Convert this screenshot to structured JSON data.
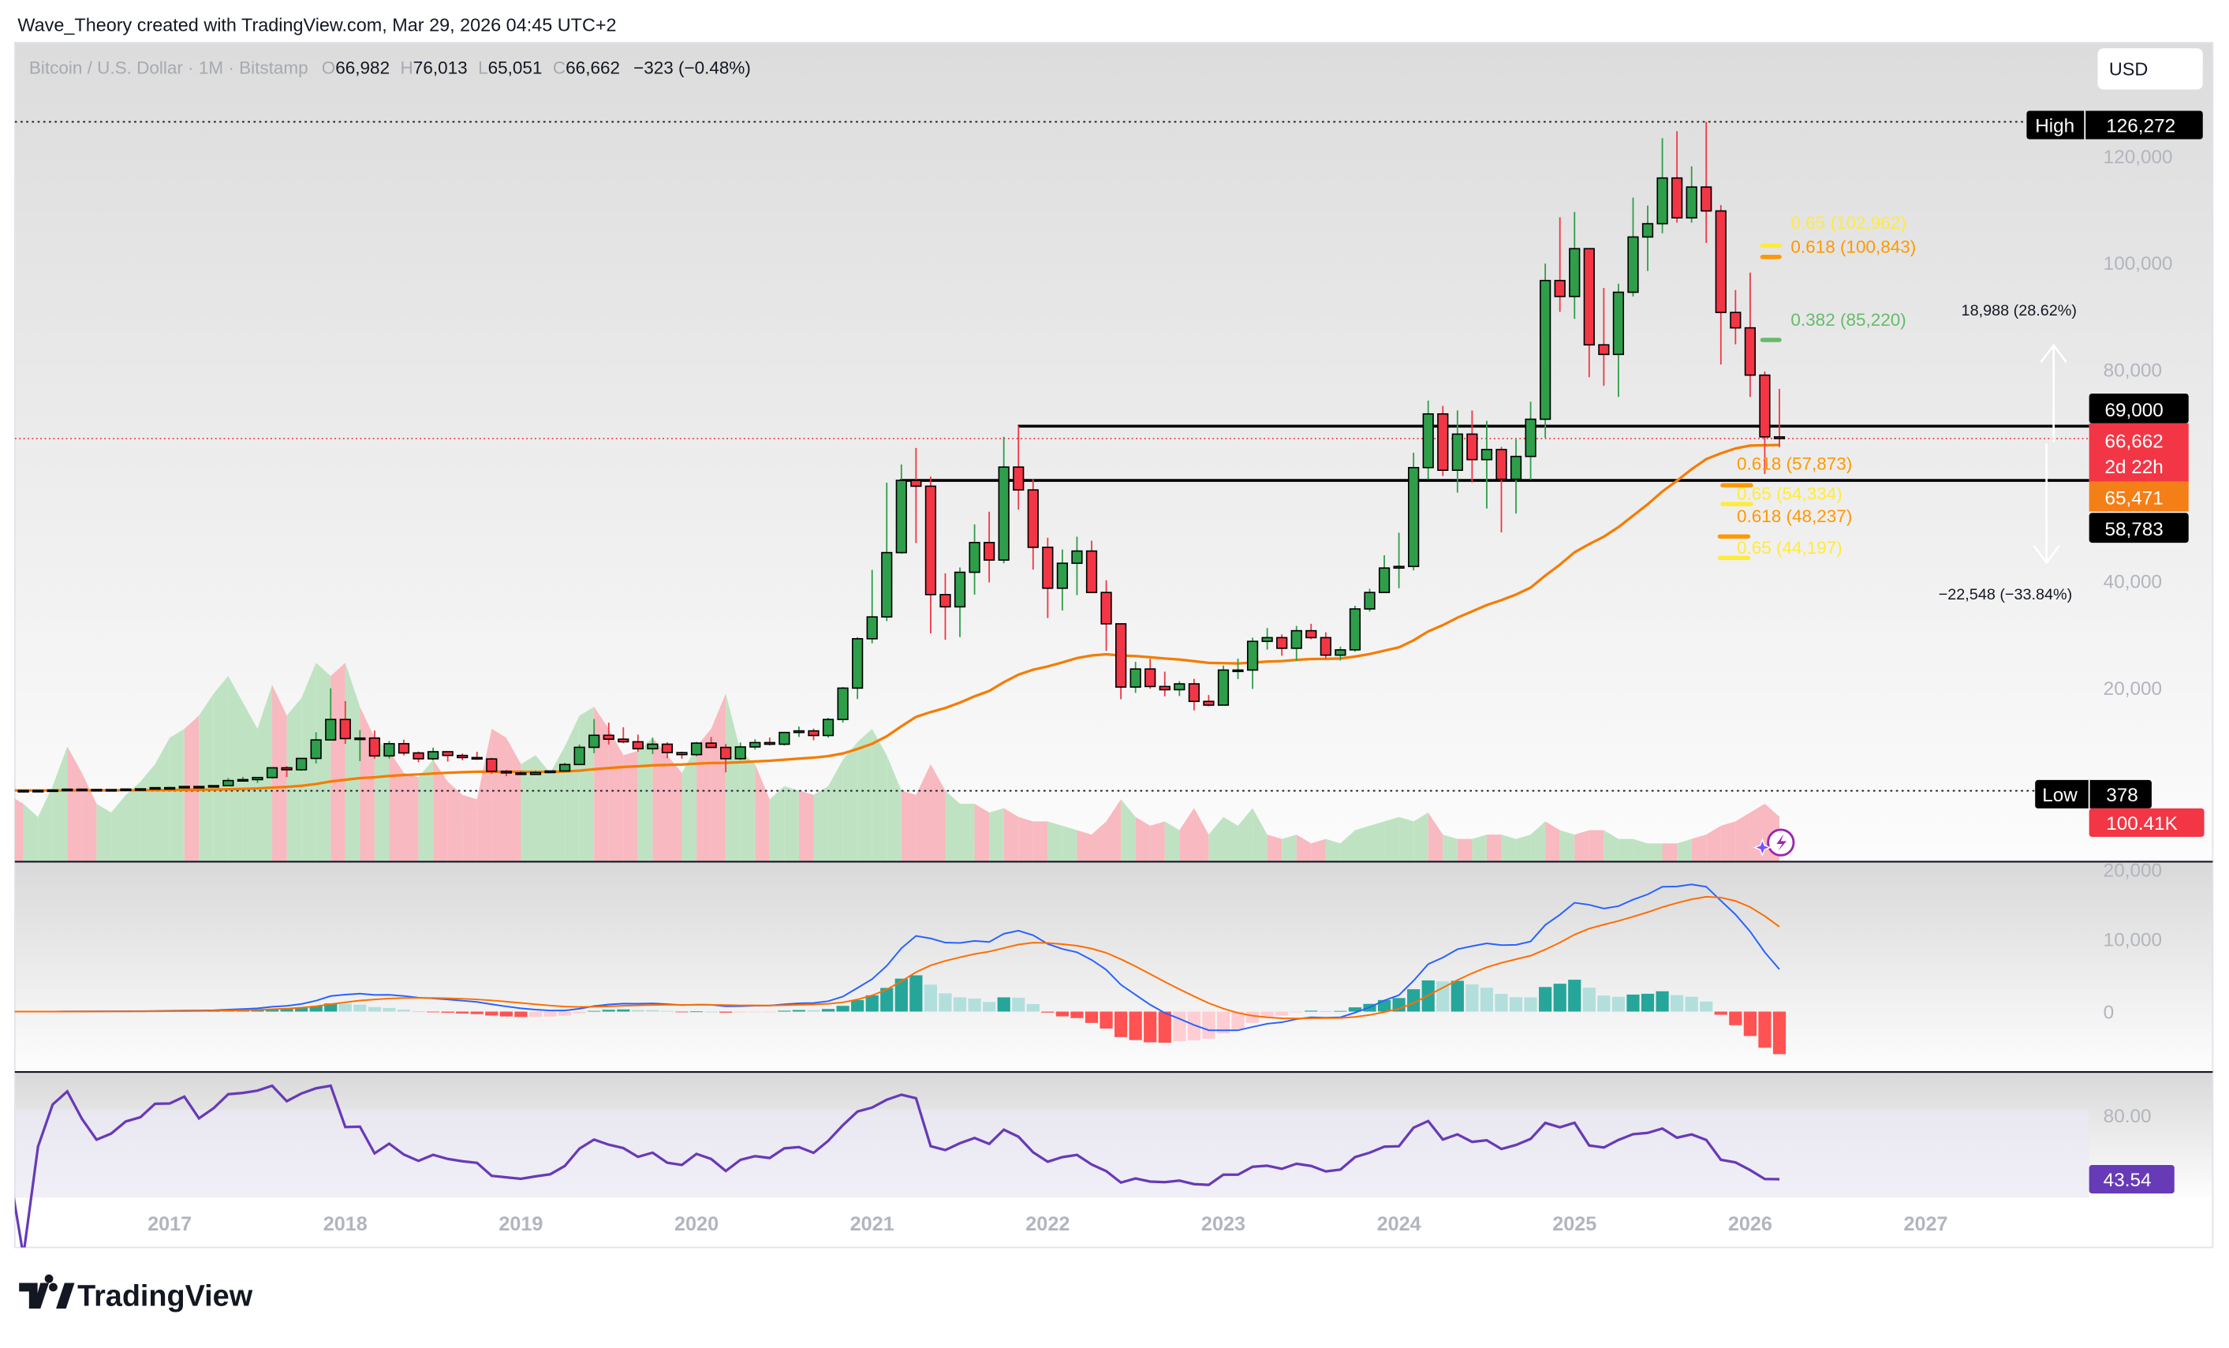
{
  "header": {
    "attribution": "Wave_Theory created with TradingView.com, Mar 29, 2026 04:45 UTC+2"
  },
  "legend": {
    "symbol": "Bitcoin / U.S. Dollar · 1M · Bitstamp",
    "o_label": "O",
    "o": "66,982",
    "h_label": "H",
    "h": "76,013",
    "l_label": "L",
    "l": "65,051",
    "c_label": "C",
    "c": "66,662",
    "change": "−323 (−0.48%)"
  },
  "currency_button": "USD",
  "price_axis": [
    "120,000",
    "100,000",
    "80,000",
    "40,000",
    "20,000"
  ],
  "macd_axis": [
    "20,000",
    "10,000",
    "0"
  ],
  "rsi_axis": [
    "80.00"
  ],
  "time_axis": [
    "2017",
    "2018",
    "2019",
    "2020",
    "2021",
    "2022",
    "2023",
    "2024",
    "2025",
    "2026",
    "2027"
  ],
  "labels": {
    "high_label": "High",
    "high_value": "126,272",
    "low_label": "Low",
    "low_value": "378",
    "level_upper": "69,000",
    "last_price": "66,662",
    "countdown": "2d 22h",
    "ma_value": "65,471",
    "level_lower": "58,783",
    "volume_value": "100.41K",
    "rsi_value": "43.54"
  },
  "levels": {
    "upper": 69000,
    "lower": 58783,
    "last": 66662,
    "high": 126272,
    "low": 378
  },
  "fib": [
    {
      "text": "0.65 (102,962)",
      "price": 102962,
      "color": "#ffeb3b"
    },
    {
      "text": "0.618 (100,843)",
      "price": 100843,
      "color": "#ff9800"
    },
    {
      "text": "0.382 (85,220)",
      "price": 85220,
      "color": "#66bb6a"
    },
    {
      "text": "0.618 (57,873)",
      "price": 57873,
      "color": "#ff9800"
    },
    {
      "text": "0.65 (54,334)",
      "price": 54334,
      "color": "#ffeb3b"
    },
    {
      "text": "0.618 (48,237)",
      "price": 48237,
      "color": "#ff9800"
    },
    {
      "text": "0.65 (44,197)",
      "price": 44197,
      "color": "#ffeb3b"
    }
  ],
  "measure": {
    "up": "18,988 (28.62%)",
    "down": "−22,548 (−33.84%)"
  },
  "logo": "TradingView",
  "colors": {
    "up": "#2e9e4b",
    "down": "#f23645",
    "ma": "#f57c00",
    "macd": "#2962ff",
    "signal": "#ff6d00",
    "rsi": "#673ab7"
  },
  "chart_data": {
    "type": "candlestick",
    "interval": "1M",
    "start": "2016-02",
    "ohlc": [
      [
        369,
        446,
        365,
        437
      ],
      [
        437,
        439,
        403,
        416
      ],
      [
        416,
        468,
        414,
        448
      ],
      [
        448,
        550,
        436,
        531
      ],
      [
        531,
        780,
        520,
        673
      ],
      [
        673,
        705,
        470,
        624
      ],
      [
        624,
        626,
        535,
        575
      ],
      [
        575,
        630,
        565,
        609
      ],
      [
        609,
        720,
        603,
        700
      ],
      [
        700,
        755,
        683,
        742
      ],
      [
        742,
        980,
        735,
        963
      ],
      [
        963,
        1150,
        750,
        970
      ],
      [
        970,
        1210,
        915,
        1190
      ],
      [
        1190,
        1290,
        890,
        1080
      ],
      [
        1080,
        1360,
        1070,
        1350
      ],
      [
        1350,
        2790,
        1340,
        2300
      ],
      [
        2300,
        3000,
        2100,
        2480
      ],
      [
        2480,
        2920,
        1840,
        2875
      ],
      [
        2875,
        4760,
        2670,
        4700
      ],
      [
        4700,
        5000,
        2970,
        4340
      ],
      [
        4340,
        6470,
        4130,
        6470
      ],
      [
        6470,
        11400,
        5510,
        9950
      ],
      [
        9950,
        19670,
        9930,
        13800
      ],
      [
        13800,
        17250,
        9200,
        10200
      ],
      [
        10200,
        11790,
        5960,
        10300
      ],
      [
        10300,
        11710,
        6430,
        6940
      ],
      [
        6940,
        9760,
        6430,
        9240
      ],
      [
        9240,
        9990,
        7040,
        7500
      ],
      [
        7500,
        7770,
        5750,
        6400
      ],
      [
        6400,
        8490,
        6110,
        7730
      ],
      [
        7730,
        7760,
        5880,
        7030
      ],
      [
        7030,
        7400,
        6130,
        6630
      ],
      [
        6630,
        7700,
        6200,
        6370
      ],
      [
        6370,
        6580,
        3560,
        4040
      ],
      [
        4040,
        4310,
        3120,
        3740
      ],
      [
        3740,
        4110,
        3350,
        3460
      ],
      [
        3460,
        4200,
        3370,
        3810
      ],
      [
        3810,
        4140,
        3670,
        4100
      ],
      [
        4100,
        5640,
        4070,
        5320
      ],
      [
        5320,
        9090,
        5320,
        8560
      ],
      [
        8560,
        13880,
        7450,
        10820
      ],
      [
        10820,
        13200,
        9080,
        10090
      ],
      [
        10090,
        12330,
        9330,
        9600
      ],
      [
        9600,
        10950,
        7710,
        8290
      ],
      [
        8290,
        10370,
        7300,
        9150
      ],
      [
        9150,
        9510,
        6520,
        7560
      ],
      [
        7560,
        7750,
        6410,
        7190
      ],
      [
        7190,
        9580,
        6850,
        9350
      ],
      [
        9350,
        10500,
        8450,
        8540
      ],
      [
        8540,
        9190,
        3850,
        6420
      ],
      [
        6420,
        9460,
        6150,
        8630
      ],
      [
        8630,
        10080,
        8120,
        9450
      ],
      [
        9450,
        10400,
        8910,
        9140
      ],
      [
        9140,
        11450,
        8900,
        11350
      ],
      [
        11350,
        12470,
        10520,
        11650
      ],
      [
        11650,
        12070,
        9880,
        10780
      ],
      [
        10780,
        14100,
        10380,
        13800
      ],
      [
        13800,
        19900,
        13200,
        19700
      ],
      [
        19700,
        29300,
        17650,
        28990
      ],
      [
        28990,
        41950,
        28130,
        33100
      ],
      [
        33100,
        58350,
        32300,
        45200
      ],
      [
        45200,
        61780,
        45000,
        58800
      ],
      [
        58800,
        64900,
        47000,
        57700
      ],
      [
        57700,
        59500,
        30000,
        37300
      ],
      [
        37300,
        41300,
        28800,
        35000
      ],
      [
        35000,
        42400,
        29300,
        41500
      ],
      [
        41500,
        50500,
        37300,
        47100
      ],
      [
        47100,
        52900,
        39600,
        43800
      ],
      [
        43800,
        67000,
        43200,
        61300
      ],
      [
        61300,
        69000,
        53300,
        57000
      ],
      [
        57000,
        59100,
        42000,
        46200
      ],
      [
        46200,
        47990,
        32900,
        38500
      ],
      [
        38500,
        45800,
        34300,
        43200
      ],
      [
        43200,
        48200,
        37200,
        45500
      ],
      [
        45500,
        47450,
        37700,
        37700
      ],
      [
        37700,
        40000,
        26700,
        31800
      ],
      [
        31800,
        31900,
        17600,
        19900
      ],
      [
        19900,
        24650,
        18800,
        23300
      ],
      [
        23300,
        25200,
        19600,
        20000
      ],
      [
        20000,
        22800,
        18150,
        19400
      ],
      [
        19400,
        21000,
        18200,
        20500
      ],
      [
        20500,
        21450,
        15500,
        17200
      ],
      [
        17200,
        18400,
        16300,
        16500
      ],
      [
        16500,
        23950,
        16500,
        23100
      ],
      [
        23100,
        25250,
        21400,
        23100
      ],
      [
        23100,
        29200,
        19550,
        28500
      ],
      [
        28500,
        31000,
        26950,
        29200
      ],
      [
        29200,
        29800,
        25800,
        27200
      ],
      [
        27200,
        31400,
        24800,
        30500
      ],
      [
        30500,
        31800,
        28900,
        29200
      ],
      [
        29200,
        30200,
        25200,
        25900
      ],
      [
        25900,
        27500,
        24900,
        26900
      ],
      [
        26900,
        35200,
        26550,
        34600
      ],
      [
        34600,
        38400,
        34100,
        37700
      ],
      [
        37700,
        44700,
        37600,
        42300
      ],
      [
        42300,
        48950,
        38500,
        42600
      ],
      [
        42600,
        64000,
        41850,
        61200
      ],
      [
        61200,
        73800,
        59000,
        71300
      ],
      [
        71300,
        72800,
        59600,
        60700
      ],
      [
        60700,
        71950,
        56500,
        67500
      ],
      [
        67500,
        71950,
        58400,
        62700
      ],
      [
        62700,
        70000,
        53500,
        64600
      ],
      [
        64600,
        65100,
        49000,
        59000
      ],
      [
        59000,
        66500,
        52550,
        63300
      ],
      [
        63300,
        73600,
        58900,
        70300
      ],
      [
        70300,
        99600,
        66800,
        96400
      ],
      [
        96400,
        108300,
        90500,
        93400
      ],
      [
        93400,
        109300,
        89200,
        102400
      ],
      [
        102400,
        102500,
        78200,
        84300
      ],
      [
        84300,
        95000,
        76600,
        82500
      ],
      [
        82500,
        95800,
        74500,
        94200
      ],
      [
        94200,
        112000,
        93400,
        104600
      ],
      [
        104600,
        110500,
        98200,
        107100
      ],
      [
        107100,
        123200,
        105300,
        115700
      ],
      [
        115700,
        124500,
        107300,
        108200
      ],
      [
        108200,
        117900,
        107300,
        114000
      ],
      [
        114000,
        126272,
        103500,
        109500
      ],
      [
        109500,
        110600,
        80600,
        90400
      ],
      [
        90400,
        94600,
        84400,
        87500
      ],
      [
        87500,
        97900,
        74500,
        78600
      ],
      [
        78600,
        79300,
        60000,
        66982
      ],
      [
        66982,
        76013,
        65051,
        66662
      ]
    ],
    "volume_k": [
      150,
      130,
      100,
      170,
      260,
      200,
      130,
      110,
      150,
      180,
      220,
      280,
      300,
      330,
      380,
      420,
      360,
      300,
      400,
      330,
      370,
      450,
      420,
      450,
      350,
      280,
      250,
      200,
      190,
      230,
      180,
      150,
      140,
      300,
      280,
      220,
      240,
      200,
      260,
      330,
      350,
      300,
      240,
      250,
      280,
      240,
      200,
      260,
      300,
      380,
      250,
      220,
      140,
      170,
      160,
      150,
      170,
      230,
      270,
      300,
      240,
      160,
      150,
      220,
      160,
      130,
      130,
      110,
      120,
      100,
      90,
      90,
      80,
      70,
      60,
      90,
      140,
      100,
      80,
      90,
      70,
      120,
      60,
      100,
      80,
      120,
      60,
      50,
      60,
      40,
      50,
      40,
      70,
      80,
      90,
      100,
      90,
      110,
      60,
      50,
      50,
      60,
      60,
      50,
      60,
      90,
      70,
      60,
      70,
      70,
      50,
      50,
      40,
      40,
      40,
      50,
      60,
      80,
      90,
      110,
      130,
      100.41
    ],
    "price_range": [
      0,
      126272
    ],
    "yscale": "linear"
  }
}
